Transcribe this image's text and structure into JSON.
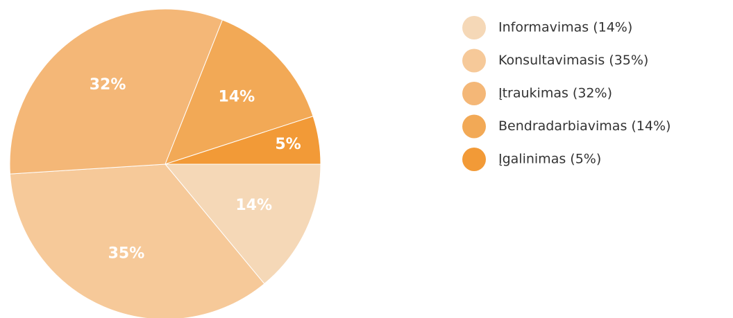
{
  "chart_data": {
    "type": "pie",
    "categories": [
      "Informavimas (14%)",
      "Konsultavimasis (35%)",
      "Įtraukimas (32%)",
      "Bendradarbiavimas (14%)",
      "Įgalinimas (5%)"
    ],
    "values": [
      14,
      35,
      32,
      14,
      5
    ],
    "value_labels": [
      "14%",
      "35%",
      "32%",
      "14%",
      "5%"
    ],
    "colors": [
      "#f5d8b7",
      "#f6c999",
      "#f4b777",
      "#f2a956",
      "#f29a37"
    ]
  }
}
